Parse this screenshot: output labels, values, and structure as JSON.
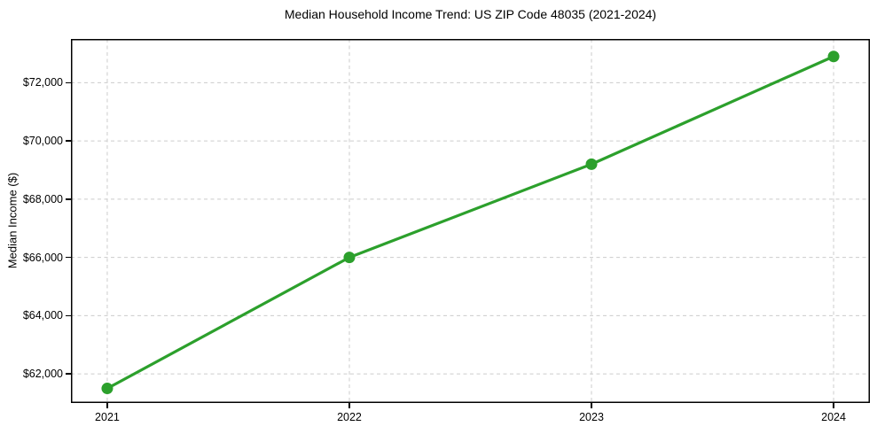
{
  "figure": {
    "kind": "matplotlib-style line chart"
  },
  "chart_data": {
    "type": "line",
    "title": "Median Household Income Trend: US ZIP Code 48035 (2021-2024)",
    "xlabel": "",
    "ylabel": "Median Income ($)",
    "x": [
      2021,
      2022,
      2023,
      2024
    ],
    "xtick_labels": [
      "2021",
      "2022",
      "2023",
      "2024"
    ],
    "values": [
      61500,
      66000,
      69200,
      72900
    ],
    "yticks": [
      62000,
      64000,
      66000,
      68000,
      70000,
      72000
    ],
    "ytick_labels": [
      "$62,000",
      "$64,000",
      "$66,000",
      "$68,000",
      "$70,000",
      "$72,000"
    ],
    "xlim": [
      2020.85,
      2024.15
    ],
    "ylim": [
      61000,
      73500
    ],
    "grid": true,
    "grid_style": "dashed",
    "legend": false,
    "style": {
      "line_color": "#2ca02c",
      "marker": "circle",
      "marker_radius": 6.5,
      "line_width": 3.2,
      "grid_color": "#cccccc",
      "axis_color": "#000000",
      "background": "#ffffff"
    }
  }
}
